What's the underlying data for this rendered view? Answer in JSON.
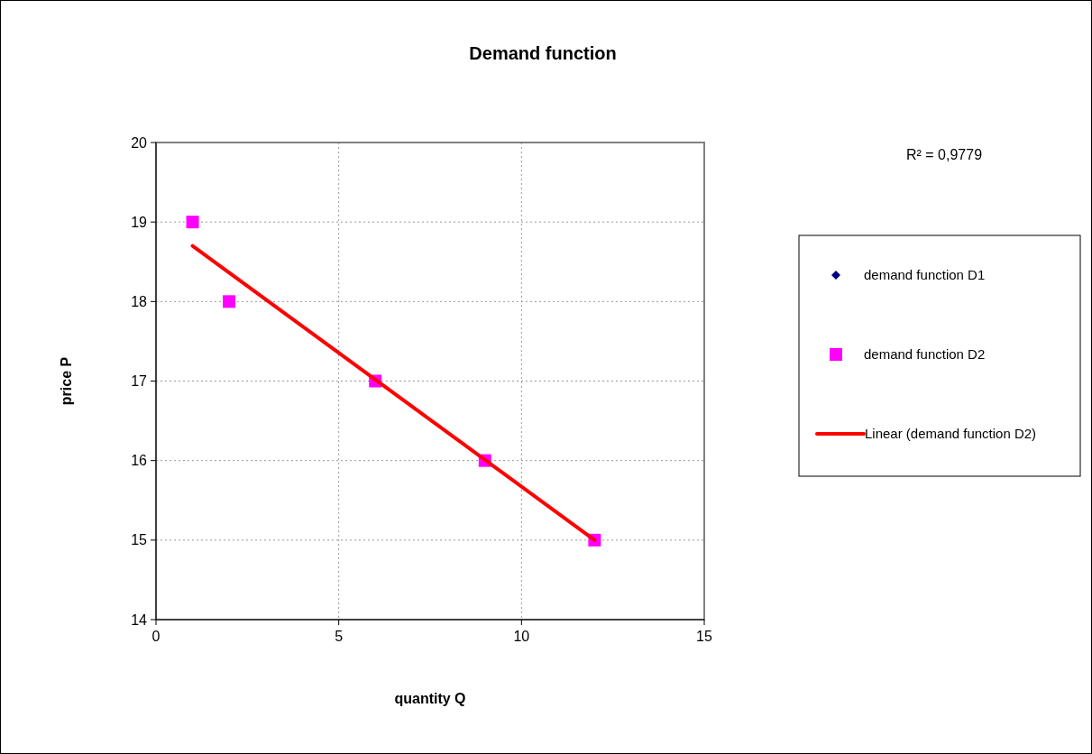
{
  "chart_data": {
    "type": "scatter",
    "title": "Demand function",
    "xlabel": "quantity Q",
    "ylabel": "price P",
    "annotations": [
      "R² = 0,9779"
    ],
    "xlim": [
      0,
      15
    ],
    "xticks": [
      0,
      5,
      10,
      15
    ],
    "ylim": [
      14,
      20
    ],
    "yticks": [
      14,
      15,
      16,
      17,
      18,
      19,
      20
    ],
    "grid": true,
    "legend": "right",
    "x": [
      1,
      2,
      6,
      9,
      12
    ],
    "series": [
      {
        "name": "demand function D1",
        "marker": "diamond",
        "color": "#000080",
        "values": [
          null,
          null,
          null,
          null,
          null
        ]
      },
      {
        "name": "demand function D2",
        "marker": "square",
        "color": "#ff00ff",
        "values": [
          19,
          18,
          17,
          16,
          15
        ]
      },
      {
        "name": "Linear (demand function D2)",
        "type": "line",
        "marker": "none",
        "line_style": "solid",
        "color": "#ff0000",
        "x": [
          1,
          12
        ],
        "values": [
          18.7,
          15.0
        ]
      }
    ]
  }
}
